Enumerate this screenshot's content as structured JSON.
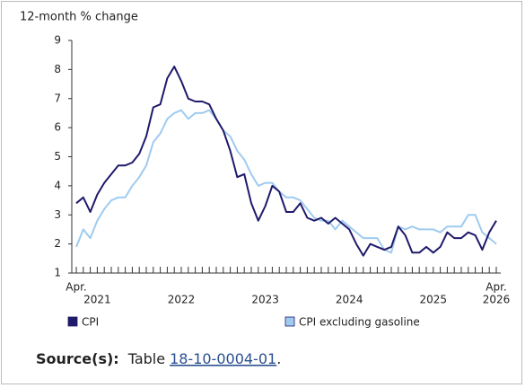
{
  "chart_data": {
    "type": "line",
    "y_axis_label": "12-month % change",
    "categories": [
      "Apr.",
      null,
      null,
      "2021",
      null,
      null,
      null,
      null,
      null,
      null,
      null,
      null,
      null,
      null,
      null,
      "2022",
      null,
      null,
      null,
      null,
      null,
      null,
      null,
      null,
      null,
      null,
      null,
      "2023",
      null,
      null,
      null,
      null,
      null,
      null,
      null,
      null,
      null,
      null,
      null,
      "2024",
      null,
      null,
      null,
      null,
      null,
      null,
      null,
      null,
      null,
      null,
      null,
      "2025",
      null,
      null,
      null,
      null,
      null,
      null,
      null,
      null,
      "Apr."
    ],
    "last_year_label": "2026",
    "series": [
      {
        "name": "CPI",
        "color": "#1f1a6b",
        "values": [
          3.4,
          3.6,
          3.1,
          3.7,
          4.1,
          4.4,
          4.7,
          4.7,
          4.8,
          5.1,
          5.7,
          6.7,
          6.8,
          7.7,
          8.1,
          7.6,
          7.0,
          6.9,
          6.9,
          6.8,
          6.3,
          5.9,
          5.2,
          4.3,
          4.4,
          3.4,
          2.8,
          3.3,
          4.0,
          3.8,
          3.1,
          3.1,
          3.4,
          2.9,
          2.8,
          2.9,
          2.7,
          2.9,
          2.7,
          2.5,
          2.0,
          1.6,
          2.0,
          1.9,
          1.8,
          1.9,
          2.6,
          2.3,
          1.7,
          1.7,
          1.9,
          1.7,
          1.9,
          2.4,
          2.2,
          2.2,
          2.4,
          2.3,
          1.8,
          2.4,
          2.8
        ]
      },
      {
        "name": "CPI excluding gasoline",
        "color": "#9fcbef",
        "values": [
          1.9,
          2.5,
          2.2,
          2.8,
          3.2,
          3.5,
          3.6,
          3.6,
          4.0,
          4.3,
          4.7,
          5.5,
          5.8,
          6.3,
          6.5,
          6.6,
          6.3,
          6.5,
          6.5,
          6.6,
          6.3,
          5.9,
          5.7,
          5.2,
          4.9,
          4.4,
          4.0,
          4.1,
          4.1,
          3.8,
          3.6,
          3.6,
          3.5,
          3.2,
          2.9,
          2.8,
          2.8,
          2.5,
          2.8,
          2.6,
          2.4,
          2.2,
          2.2,
          2.2,
          1.8,
          1.7,
          2.6,
          2.5,
          2.6,
          2.5,
          2.5,
          2.5,
          2.4,
          2.6,
          2.6,
          2.6,
          3.0,
          3.0,
          2.4,
          2.2,
          2.0
        ]
      }
    ],
    "ylim": [
      1,
      9
    ],
    "yticks": [
      1,
      2,
      3,
      4,
      5,
      6,
      7,
      8,
      9
    ],
    "grid": false,
    "legend": "bottom",
    "source": {
      "label": "Source(s):",
      "text": "Table",
      "link": "18-10-0004-01",
      "end": "."
    }
  }
}
